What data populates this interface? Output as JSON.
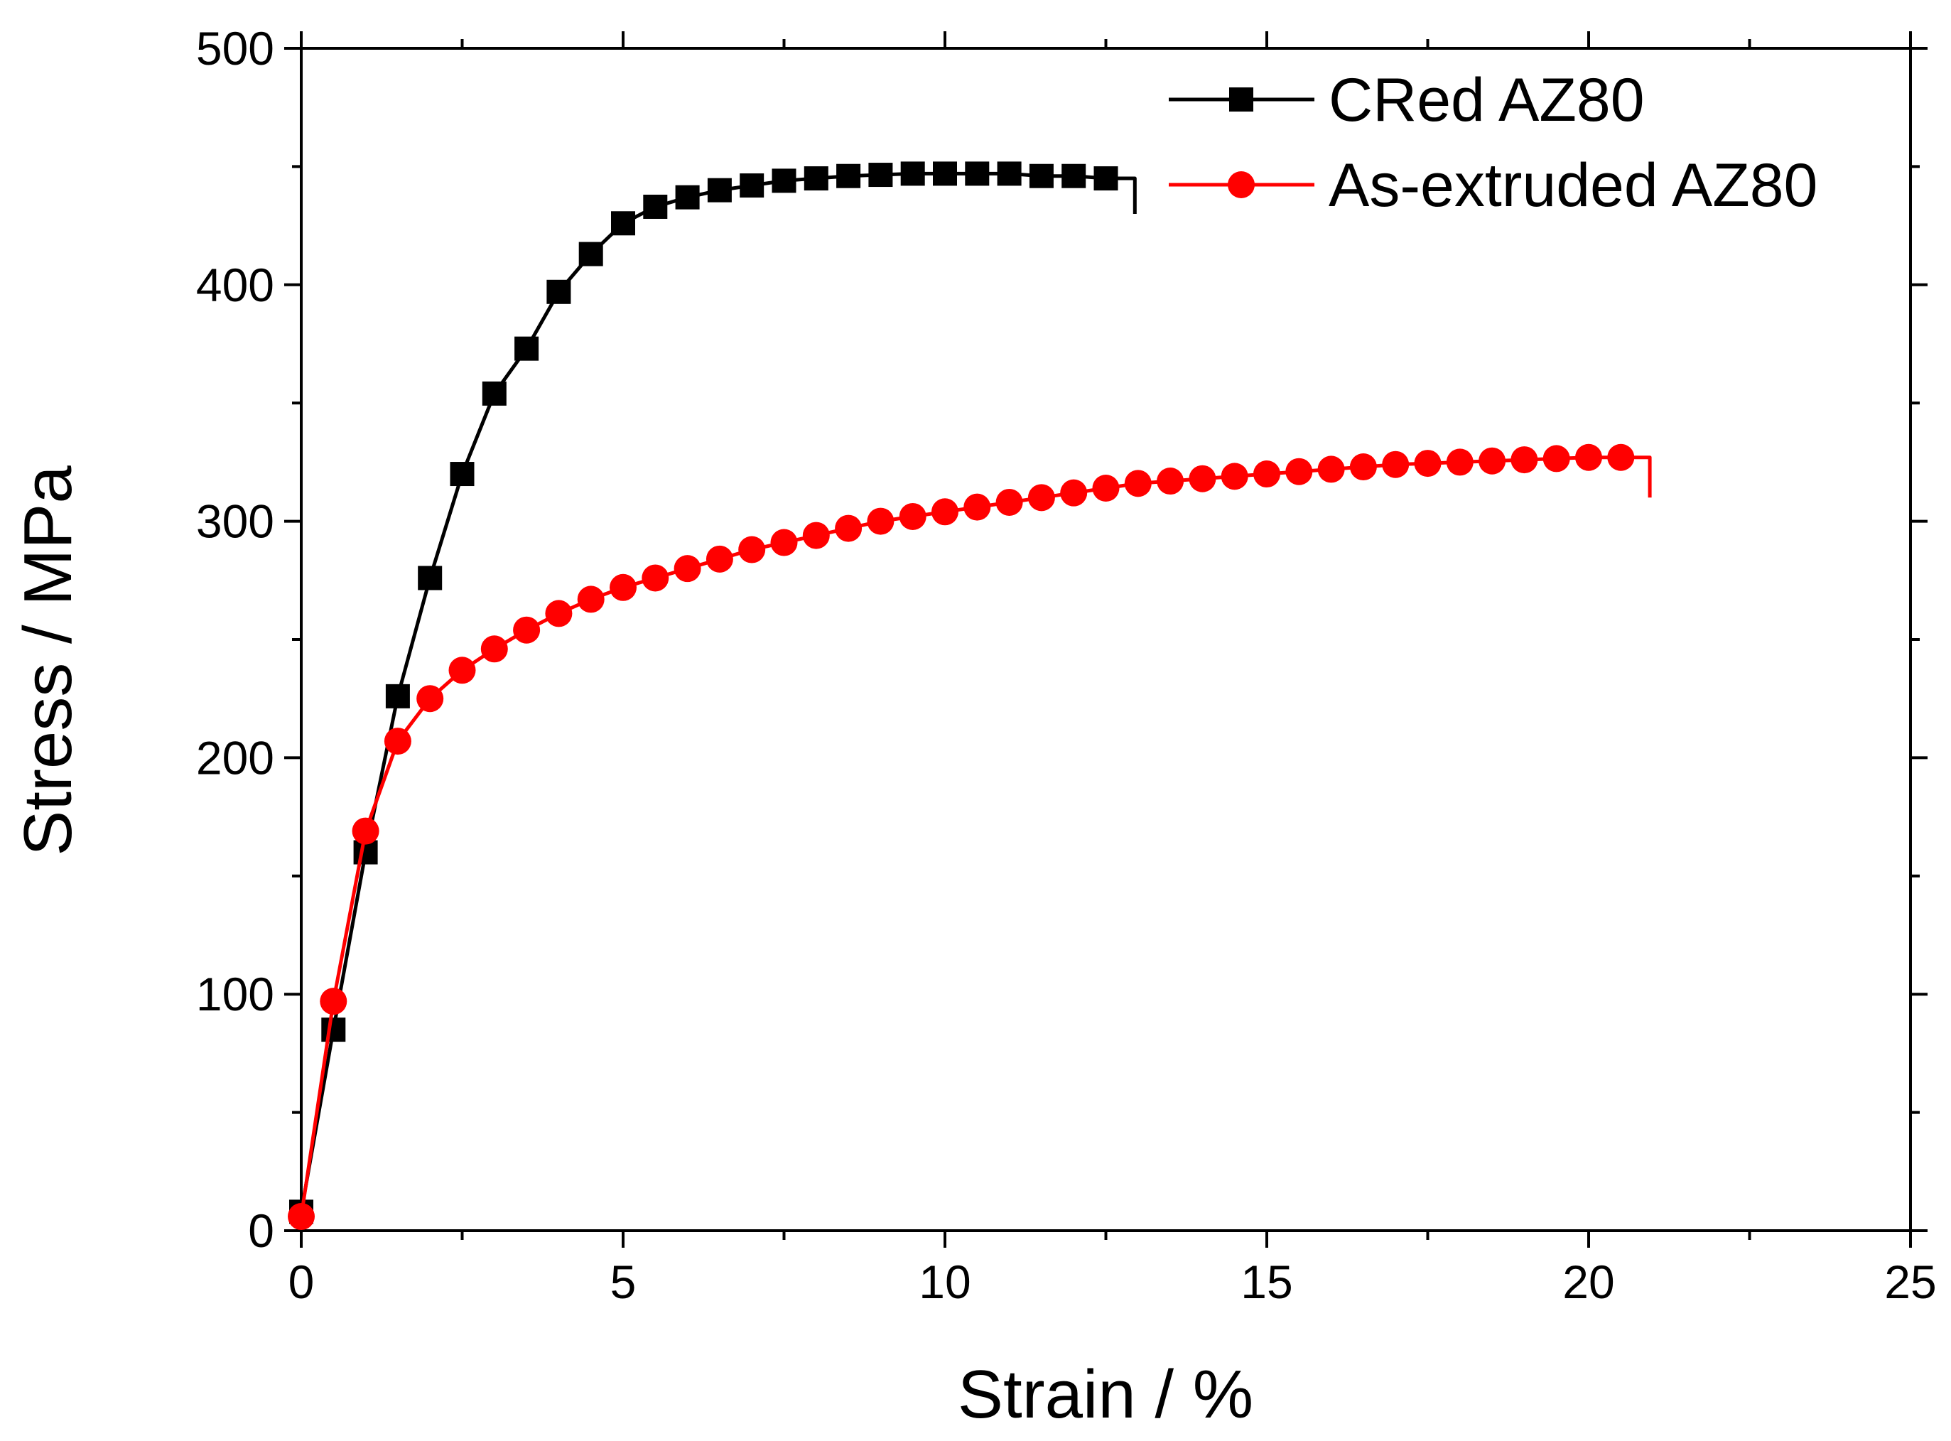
{
  "chart_data": {
    "type": "line",
    "title": "",
    "xlabel": "Strain / %",
    "ylabel": "Stress / MPa",
    "xlim": [
      0,
      25
    ],
    "ylim": [
      0,
      500
    ],
    "x_ticks": [
      0,
      5,
      10,
      15,
      20,
      25
    ],
    "x_tick_labels": [
      "0",
      "5",
      "10",
      "15",
      "20",
      "25"
    ],
    "y_ticks": [
      0,
      100,
      200,
      300,
      400,
      500
    ],
    "y_tick_labels": [
      "0",
      "100",
      "200",
      "300",
      "400",
      "500"
    ],
    "x_minor_step": 2.5,
    "y_minor_step": 50,
    "grid": false,
    "legend_position": "top-right",
    "series": [
      {
        "name": "CRed AZ80",
        "color": "#000000",
        "marker": "square",
        "end_point": [
          12.95,
          430
        ],
        "x": [
          0,
          0.5,
          1.0,
          1.5,
          2.0,
          2.5,
          3.0,
          3.5,
          4.0,
          4.5,
          5.0,
          5.5,
          6.0,
          6.5,
          7.0,
          7.5,
          8.0,
          8.5,
          9.0,
          9.5,
          10.0,
          10.5,
          11.0,
          11.5,
          12.0,
          12.5
        ],
        "y": [
          8,
          85,
          160,
          226,
          276,
          320,
          354,
          373,
          397,
          413,
          426,
          433,
          437,
          440,
          442,
          444,
          445,
          446,
          446.5,
          447,
          447,
          447,
          447,
          446,
          446,
          445
        ]
      },
      {
        "name": "As-extruded AZ80",
        "color": "#ff0000",
        "marker": "circle",
        "end_point": [
          20.95,
          310
        ],
        "x": [
          0,
          0.5,
          1.0,
          1.5,
          2.0,
          2.5,
          3.0,
          3.5,
          4.0,
          4.5,
          5.0,
          5.5,
          6.0,
          6.5,
          7.0,
          7.5,
          8.0,
          8.5,
          9.0,
          9.5,
          10.0,
          10.5,
          11.0,
          11.5,
          12.0,
          12.5,
          13.0,
          13.5,
          14.0,
          14.5,
          15.0,
          15.5,
          16.0,
          16.5,
          17.0,
          17.5,
          18.0,
          18.5,
          19.0,
          19.5,
          20.0,
          20.5
        ],
        "y": [
          6,
          97,
          169,
          207,
          225,
          237,
          246,
          254,
          261,
          267,
          272,
          276,
          280,
          284,
          288,
          291,
          294,
          297,
          300,
          302,
          304,
          306,
          308,
          310,
          312,
          314,
          316,
          317,
          318,
          319,
          320,
          321,
          322,
          323,
          324,
          324.5,
          325,
          325.5,
          326,
          326.5,
          327,
          327
        ]
      }
    ]
  }
}
